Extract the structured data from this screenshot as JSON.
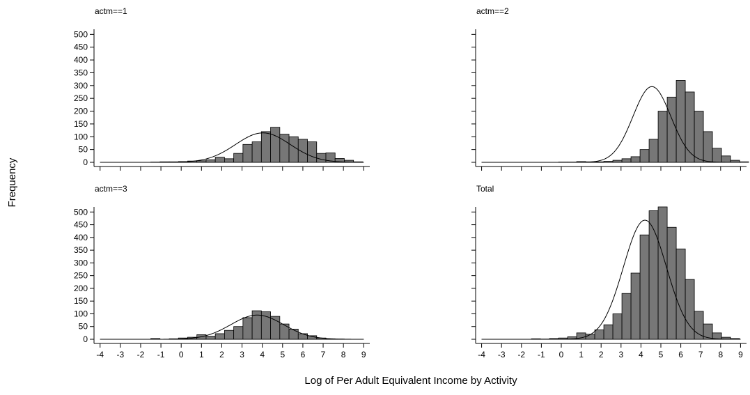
{
  "figure": {
    "xlabel": "Log of Per Adult Equivalent Income by Activity",
    "ylabel": "Frequency"
  },
  "chart_data": [
    {
      "type": "bar",
      "title": "actm==1",
      "x_ticks": [
        -4,
        -3,
        -2,
        -1,
        0,
        1,
        2,
        3,
        4,
        5,
        6,
        7,
        8,
        9
      ],
      "y_ticks": [
        0,
        50,
        100,
        150,
        200,
        250,
        300,
        350,
        400,
        450,
        500
      ],
      "xlim": [
        -4.3,
        9.3
      ],
      "ylim": [
        0,
        520
      ],
      "bin_start": -1.5,
      "bin_width": 0.4545,
      "values": [
        1,
        2,
        2,
        3,
        5,
        6,
        10,
        20,
        14,
        35,
        70,
        80,
        120,
        137,
        110,
        100,
        90,
        80,
        35,
        37,
        15,
        8,
        2
      ],
      "normal_fit": {
        "mean": 4.03,
        "sd": 1.35,
        "peak": 115
      }
    },
    {
      "type": "bar",
      "title": "actm==2",
      "x_ticks": [
        -4,
        -3,
        -2,
        -1,
        0,
        1,
        2,
        3,
        4,
        5,
        6,
        7,
        8,
        9
      ],
      "y_ticks": [
        0,
        50,
        100,
        150,
        200,
        250,
        300,
        350,
        400,
        450,
        500
      ],
      "xlim": [
        -4.3,
        9.3
      ],
      "ylim": [
        0,
        520
      ],
      "bin_start": -1.5,
      "bin_width": 0.4545,
      "values": [
        0,
        0,
        0,
        1,
        1,
        3,
        2,
        2,
        4,
        8,
        14,
        22,
        50,
        90,
        200,
        255,
        320,
        275,
        200,
        120,
        55,
        25,
        8,
        2
      ],
      "normal_fit": {
        "mean": 4.55,
        "sd": 0.95,
        "peak": 296
      }
    },
    {
      "type": "bar",
      "title": "actm==3",
      "x_ticks": [
        -4,
        -3,
        -2,
        -1,
        0,
        1,
        2,
        3,
        4,
        5,
        6,
        7,
        8,
        9
      ],
      "y_ticks": [
        0,
        50,
        100,
        150,
        200,
        250,
        300,
        350,
        400,
        450,
        500
      ],
      "xlim": [
        -4.3,
        9.3
      ],
      "ylim": [
        0,
        520
      ],
      "bin_start": -1.5,
      "bin_width": 0.4545,
      "values": [
        3,
        0,
        2,
        5,
        8,
        18,
        12,
        22,
        35,
        50,
        85,
        112,
        108,
        90,
        60,
        40,
        22,
        14,
        5,
        2,
        1
      ],
      "normal_fit": {
        "mean": 3.75,
        "sd": 1.3,
        "peak": 95
      }
    },
    {
      "type": "bar",
      "title": "Total",
      "x_ticks": [
        -4,
        -3,
        -2,
        -1,
        0,
        1,
        2,
        3,
        4,
        5,
        6,
        7,
        8,
        9
      ],
      "y_ticks": [
        0,
        50,
        100,
        150,
        200,
        250,
        300,
        350,
        400,
        450,
        500
      ],
      "xlim": [
        -4.3,
        9.3
      ],
      "ylim": [
        0,
        520
      ],
      "bin_start": -1.5,
      "bin_width": 0.4545,
      "values": [
        2,
        1,
        3,
        5,
        10,
        25,
        20,
        37,
        57,
        100,
        180,
        260,
        410,
        505,
        520,
        440,
        355,
        235,
        110,
        60,
        25,
        8,
        3
      ],
      "normal_fit": {
        "mean": 4.2,
        "sd": 1.08,
        "peak": 468
      }
    }
  ]
}
